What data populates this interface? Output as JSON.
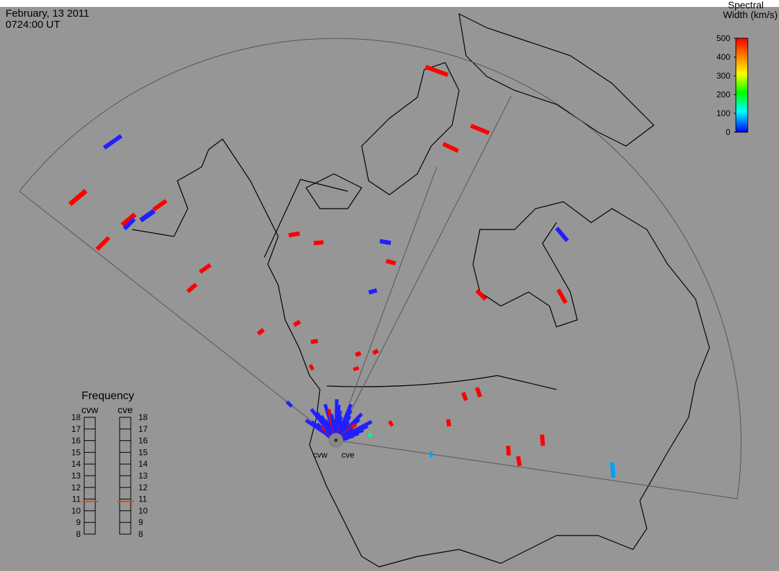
{
  "header": {
    "date": "February, 13 2011",
    "time": "0724:00 UT"
  },
  "colorbar": {
    "title_line1": "Spectral",
    "title_line2": "Width (km/s)",
    "range": [
      0,
      500
    ],
    "ticks": [
      0,
      100,
      200,
      300,
      400,
      500
    ]
  },
  "frequency": {
    "title": "Frequency",
    "range": [
      8,
      18
    ],
    "ticks": [
      8,
      9,
      10,
      11,
      12,
      13,
      14,
      15,
      16,
      17,
      18
    ],
    "radars": [
      {
        "name": "cvw",
        "value": 10.8
      },
      {
        "name": "cve",
        "value": 10.8
      }
    ]
  },
  "radar_labels": [
    "cvw",
    "cve"
  ]
}
